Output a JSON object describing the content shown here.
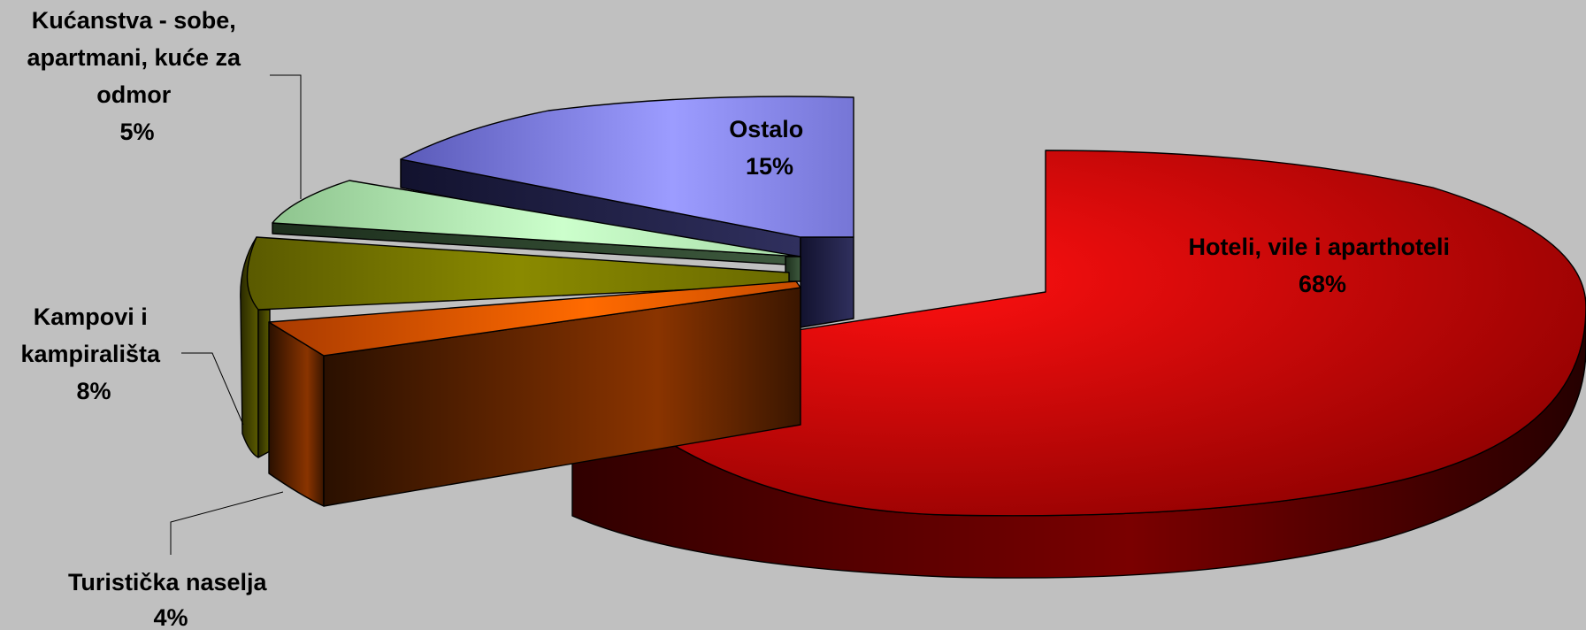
{
  "chart_data": {
    "type": "pie",
    "style": "3d-exploded",
    "legend": "none",
    "slices": [
      {
        "name": "Hoteli, vile i aparthoteli",
        "value": 68,
        "label": "68%",
        "color": "#ff0000"
      },
      {
        "name": "Turistička naselja",
        "value": 4,
        "label": "4%",
        "color": "#ff6a00"
      },
      {
        "name": "Kampovi i kampirališta",
        "value": 8,
        "label": "8%",
        "color": "#808000"
      },
      {
        "name": "Kućanstva - sobe, apartmani, kuće za odmor",
        "value": 5,
        "label": "5%",
        "color": "#c4f7c4"
      },
      {
        "name": "Ostalo",
        "value": 15,
        "label": "15%",
        "color": "#9999ff"
      }
    ]
  }
}
